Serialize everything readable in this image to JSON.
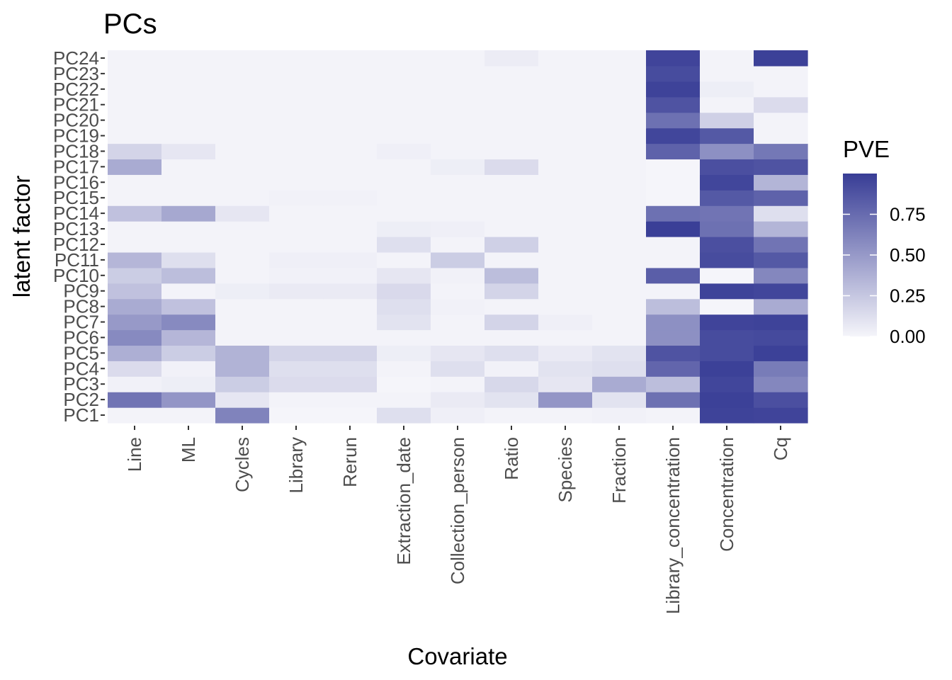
{
  "chart_data": {
    "type": "heatmap",
    "title": "PCs",
    "xlabel": "Covariate",
    "ylabel": "latent factor",
    "x": [
      "Line",
      "ML",
      "Cycles",
      "Library",
      "Rerun",
      "Extraction_date",
      "Collection_person",
      "Ratio",
      "Species",
      "Fraction",
      "Library_concentration",
      "Concentration",
      "Cq"
    ],
    "y": [
      "PC1",
      "PC2",
      "PC3",
      "PC4",
      "PC5",
      "PC6",
      "PC7",
      "PC8",
      "PC9",
      "PC10",
      "PC11",
      "PC12",
      "PC13",
      "PC14",
      "PC15",
      "PC16",
      "PC17",
      "PC18",
      "PC19",
      "PC20",
      "PC21",
      "PC22",
      "PC23",
      "PC24"
    ],
    "values": [
      [
        0.01,
        0.01,
        0.62,
        0.0,
        0.0,
        0.12,
        0.03,
        0.01,
        0.01,
        0.02,
        0.01,
        0.97,
        0.96
      ],
      [
        0.7,
        0.52,
        0.08,
        0.01,
        0.01,
        0.01,
        0.06,
        0.1,
        0.52,
        0.1,
        0.72,
        0.98,
        0.9
      ],
      [
        0.02,
        0.04,
        0.22,
        0.14,
        0.14,
        0.0,
        0.01,
        0.16,
        0.08,
        0.4,
        0.3,
        0.95,
        0.6
      ],
      [
        0.14,
        0.02,
        0.36,
        0.12,
        0.12,
        0.01,
        0.12,
        0.02,
        0.1,
        0.12,
        0.78,
        0.98,
        0.66
      ],
      [
        0.38,
        0.22,
        0.36,
        0.18,
        0.18,
        0.04,
        0.08,
        0.12,
        0.06,
        0.1,
        0.88,
        0.92,
        0.98
      ],
      [
        0.58,
        0.34,
        0.01,
        0.01,
        0.01,
        0.01,
        0.01,
        0.01,
        0.01,
        0.01,
        0.55,
        0.92,
        0.93
      ],
      [
        0.5,
        0.58,
        0.01,
        0.01,
        0.01,
        0.1,
        0.01,
        0.18,
        0.03,
        0.01,
        0.55,
        0.96,
        0.97
      ],
      [
        0.4,
        0.28,
        0.01,
        0.01,
        0.01,
        0.12,
        0.02,
        0.01,
        0.01,
        0.01,
        0.3,
        0.0,
        0.4
      ],
      [
        0.28,
        0.01,
        0.04,
        0.06,
        0.06,
        0.15,
        0.01,
        0.18,
        0.01,
        0.01,
        0.01,
        0.97,
        0.95
      ],
      [
        0.22,
        0.3,
        0.01,
        0.02,
        0.02,
        0.08,
        0.02,
        0.3,
        0.01,
        0.01,
        0.82,
        0.0,
        0.6
      ],
      [
        0.34,
        0.12,
        0.01,
        0.03,
        0.03,
        0.01,
        0.22,
        0.01,
        0.01,
        0.01,
        0.01,
        0.92,
        0.85
      ],
      [
        0.01,
        0.01,
        0.01,
        0.01,
        0.01,
        0.12,
        0.01,
        0.2,
        0.01,
        0.01,
        0.01,
        0.9,
        0.7
      ],
      [
        0.01,
        0.01,
        0.01,
        0.01,
        0.01,
        0.04,
        0.03,
        0.01,
        0.01,
        0.01,
        0.99,
        0.72,
        0.35
      ],
      [
        0.28,
        0.42,
        0.08,
        0.01,
        0.01,
        0.01,
        0.01,
        0.01,
        0.01,
        0.01,
        0.72,
        0.7,
        0.12
      ],
      [
        0.01,
        0.01,
        0.01,
        0.02,
        0.02,
        0.01,
        0.01,
        0.01,
        0.01,
        0.01,
        0.0,
        0.85,
        0.8
      ],
      [
        0.01,
        0.01,
        0.01,
        0.01,
        0.01,
        0.01,
        0.01,
        0.01,
        0.01,
        0.01,
        0.0,
        0.95,
        0.35
      ],
      [
        0.4,
        0.01,
        0.01,
        0.01,
        0.01,
        0.01,
        0.04,
        0.14,
        0.01,
        0.01,
        0.0,
        0.9,
        0.88
      ],
      [
        0.18,
        0.08,
        0.01,
        0.01,
        0.01,
        0.03,
        0.01,
        0.01,
        0.01,
        0.01,
        0.8,
        0.55,
        0.68
      ],
      [
        0.01,
        0.01,
        0.01,
        0.01,
        0.01,
        0.01,
        0.01,
        0.01,
        0.01,
        0.01,
        0.95,
        0.85,
        0.01
      ],
      [
        0.01,
        0.01,
        0.01,
        0.01,
        0.01,
        0.01,
        0.01,
        0.01,
        0.01,
        0.01,
        0.72,
        0.2,
        0.01
      ],
      [
        0.01,
        0.01,
        0.01,
        0.01,
        0.01,
        0.01,
        0.01,
        0.01,
        0.01,
        0.01,
        0.88,
        0.01,
        0.14
      ],
      [
        0.01,
        0.01,
        0.01,
        0.01,
        0.01,
        0.01,
        0.01,
        0.01,
        0.01,
        0.01,
        0.97,
        0.04,
        0.01
      ],
      [
        0.01,
        0.01,
        0.01,
        0.01,
        0.01,
        0.01,
        0.01,
        0.01,
        0.01,
        0.01,
        0.92,
        0.01,
        0.01
      ],
      [
        0.01,
        0.01,
        0.01,
        0.01,
        0.01,
        0.01,
        0.01,
        0.05,
        0.01,
        0.01,
        0.96,
        0.01,
        0.98
      ]
    ],
    "legend": {
      "title": "PVE",
      "breaks": [
        0.0,
        0.25,
        0.5,
        0.75
      ],
      "labels": [
        "0.00",
        "0.25",
        "0.50",
        "0.75"
      ],
      "range": [
        0,
        1
      ],
      "placement": "right"
    },
    "colors": {
      "low": "#f5f5fa",
      "high": "#383d96"
    },
    "grid": false
  }
}
